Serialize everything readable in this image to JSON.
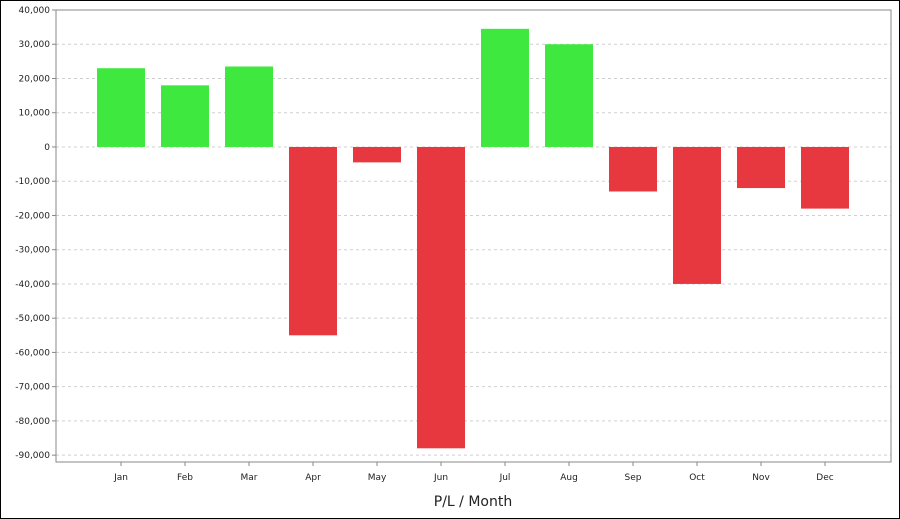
{
  "chart_data": {
    "type": "bar",
    "categories": [
      "Jan",
      "Feb",
      "Mar",
      "Apr",
      "May",
      "Jun",
      "Jul",
      "Aug",
      "Sep",
      "Oct",
      "Nov",
      "Dec"
    ],
    "values": [
      23000,
      18000,
      23500,
      -55000,
      -4500,
      -88000,
      34500,
      30000,
      -13000,
      -40000,
      -12000,
      -18000
    ],
    "xlabel": "P/L / Month",
    "ylabel": "",
    "ylim": [
      -92000,
      40000
    ],
    "yticks": [
      40000,
      30000,
      20000,
      10000,
      0,
      -10000,
      -20000,
      -30000,
      -40000,
      -50000,
      -60000,
      -70000,
      -80000,
      -90000
    ],
    "ytick_labels": [
      "40,000",
      "30,000",
      "20,000",
      "10,000",
      "0",
      "-10,000",
      "-20,000",
      "-30,000",
      "-40,000",
      "-50,000",
      "-60,000",
      "-70,000",
      "-80,000",
      "-90,000"
    ],
    "grid": true,
    "colors": {
      "positive": "#3fe83f",
      "negative": "#e8383f",
      "grid": "#d0d0d0"
    }
  }
}
